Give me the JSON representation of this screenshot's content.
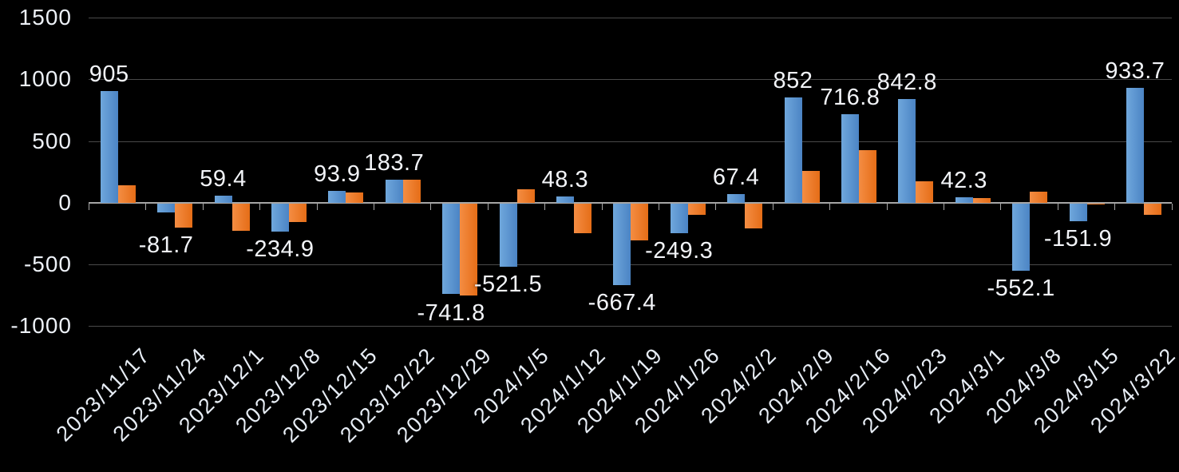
{
  "chart": {
    "background": "#000000",
    "text_color": "#edf1f7",
    "gridline_color": "#4a4a4a",
    "axis_color": "#a6a6a6"
  },
  "chart_data": {
    "type": "bar",
    "categories": [
      "2023/11/17",
      "2023/11/24",
      "2023/12/1",
      "2023/12/8",
      "2023/12/15",
      "2023/12/22",
      "2023/12/29",
      "2024/1/5",
      "2024/1/12",
      "2024/1/19",
      "2024/1/26",
      "2024/2/2",
      "2024/2/9",
      "2024/2/16",
      "2024/2/23",
      "2024/3/1",
      "2024/3/8",
      "2024/3/15",
      "2024/3/22"
    ],
    "series": [
      {
        "key": "blue",
        "color": "#5B9BD5",
        "values": [
          905,
          -81.7,
          59.4,
          -234.9,
          93.9,
          183.7,
          -741.8,
          -521.5,
          48.3,
          -667.4,
          -249.3,
          67.4,
          852,
          716.8,
          842.8,
          42.3,
          -552.1,
          -151.9,
          933.7
        ],
        "data_labels": [
          "905",
          "-81.7",
          "59.4",
          "-234.9",
          "93.9",
          "183.7",
          "-741.8",
          "-521.5",
          "48.3",
          "-667.4",
          "-249.3",
          "67.4",
          "852",
          "716.8",
          "842.8",
          "42.3",
          "-552.1",
          "-151.9",
          "933.7"
        ]
      },
      {
        "key": "orange",
        "color": "#ED7D31",
        "values": [
          140,
          -200,
          -230,
          -155,
          85,
          185,
          -750,
          110,
          -250,
          -305,
          -95,
          -210,
          255,
          425,
          175,
          35,
          90,
          -15,
          -100
        ],
        "data_labels": []
      }
    ],
    "ylim": [
      -1000,
      1500
    ],
    "yticks": [
      1500,
      1000,
      500,
      0,
      -500,
      -1000
    ],
    "ytick_labels": [
      "1500",
      "1000",
      "500",
      "0",
      "-500",
      "-1000"
    ],
    "grid": true,
    "legend": false,
    "title": ""
  }
}
